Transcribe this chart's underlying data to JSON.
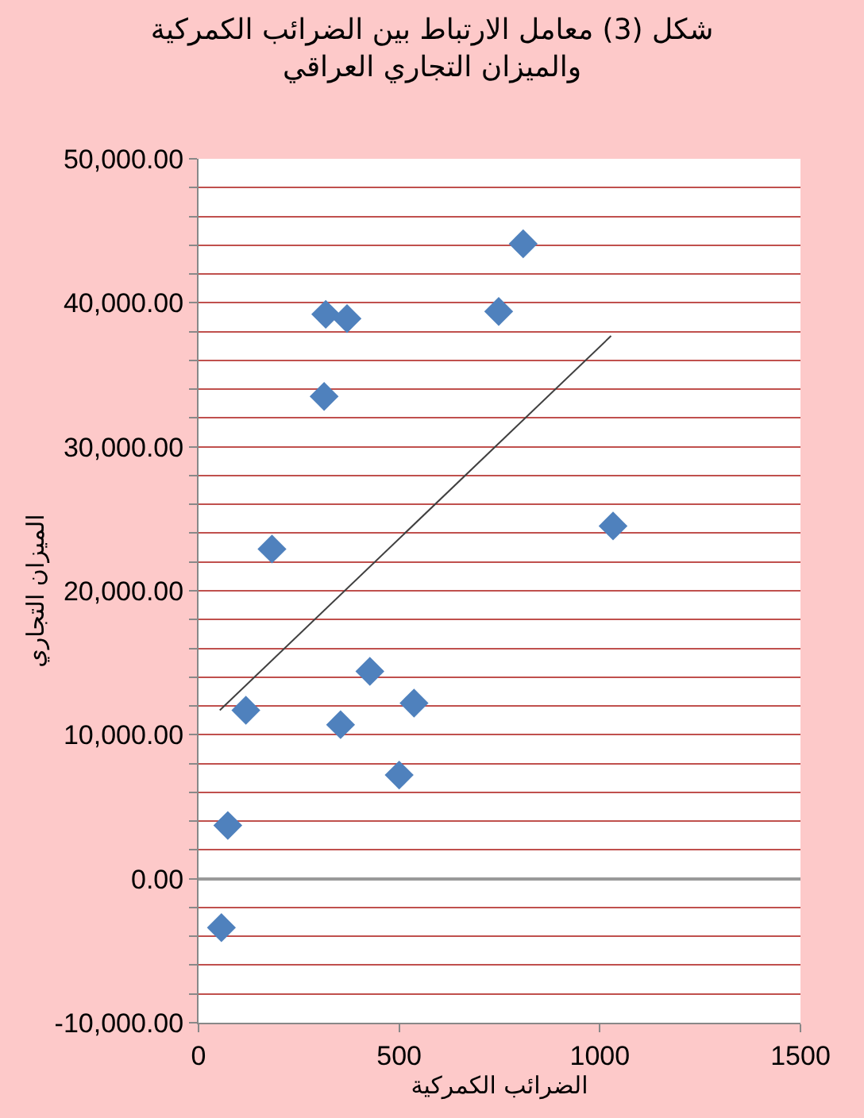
{
  "chart_data": {
    "type": "scatter",
    "title": "شكل (3) معامل الارتباط بين الضرائب الكمركية\nوالميزان التجاري العراقي",
    "xlabel": "الضرائب الكمركية",
    "ylabel": "الميزان التجاري",
    "xlim": [
      0,
      1500
    ],
    "xticks": [
      0,
      500,
      1000,
      1500
    ],
    "ylim": [
      -10000,
      50000
    ],
    "yticks": [
      {
        "value": -10000,
        "label": "-10,000.00"
      },
      {
        "value": -8000,
        "label": null
      },
      {
        "value": -6000,
        "label": null
      },
      {
        "value": -4000,
        "label": null
      },
      {
        "value": -2000,
        "label": null
      },
      {
        "value": 0,
        "label": "0.00"
      },
      {
        "value": 2000,
        "label": null
      },
      {
        "value": 4000,
        "label": null
      },
      {
        "value": 6000,
        "label": null
      },
      {
        "value": 8000,
        "label": null
      },
      {
        "value": 10000,
        "label": "10,000.00"
      },
      {
        "value": 12000,
        "label": null
      },
      {
        "value": 14000,
        "label": null
      },
      {
        "value": 16000,
        "label": null
      },
      {
        "value": 18000,
        "label": null
      },
      {
        "value": 20000,
        "label": "20,000.00"
      },
      {
        "value": 22000,
        "label": null
      },
      {
        "value": 24000,
        "label": null
      },
      {
        "value": 26000,
        "label": null
      },
      {
        "value": 28000,
        "label": null
      },
      {
        "value": 30000,
        "label": "30,000.00"
      },
      {
        "value": 32000,
        "label": null
      },
      {
        "value": 34000,
        "label": null
      },
      {
        "value": 36000,
        "label": null
      },
      {
        "value": 38000,
        "label": null
      },
      {
        "value": 40000,
        "label": "40,000.00"
      },
      {
        "value": 42000,
        "label": null
      },
      {
        "value": 44000,
        "label": null
      },
      {
        "value": 46000,
        "label": null
      },
      {
        "value": 48000,
        "label": null
      },
      {
        "value": 50000,
        "label": "50,000.00"
      }
    ],
    "grid": "y",
    "marker": "diamond",
    "series": [
      {
        "color": "#4f81bd",
        "x": [
          57,
          73,
          118,
          183,
          317,
          370,
          313,
          354,
          427,
          500,
          537,
          748,
          809,
          1033
        ],
        "values": [
          -3400,
          3700,
          11700,
          22900,
          39200,
          38900,
          33500,
          10700,
          14400,
          7200,
          12200,
          39400,
          44100,
          24500
        ]
      },
      {
        "type": "line",
        "color": "#404040",
        "marker": "none",
        "line_style": "solid",
        "x": [
          53,
          1028
        ],
        "values": [
          11700,
          37700
        ]
      }
    ]
  }
}
